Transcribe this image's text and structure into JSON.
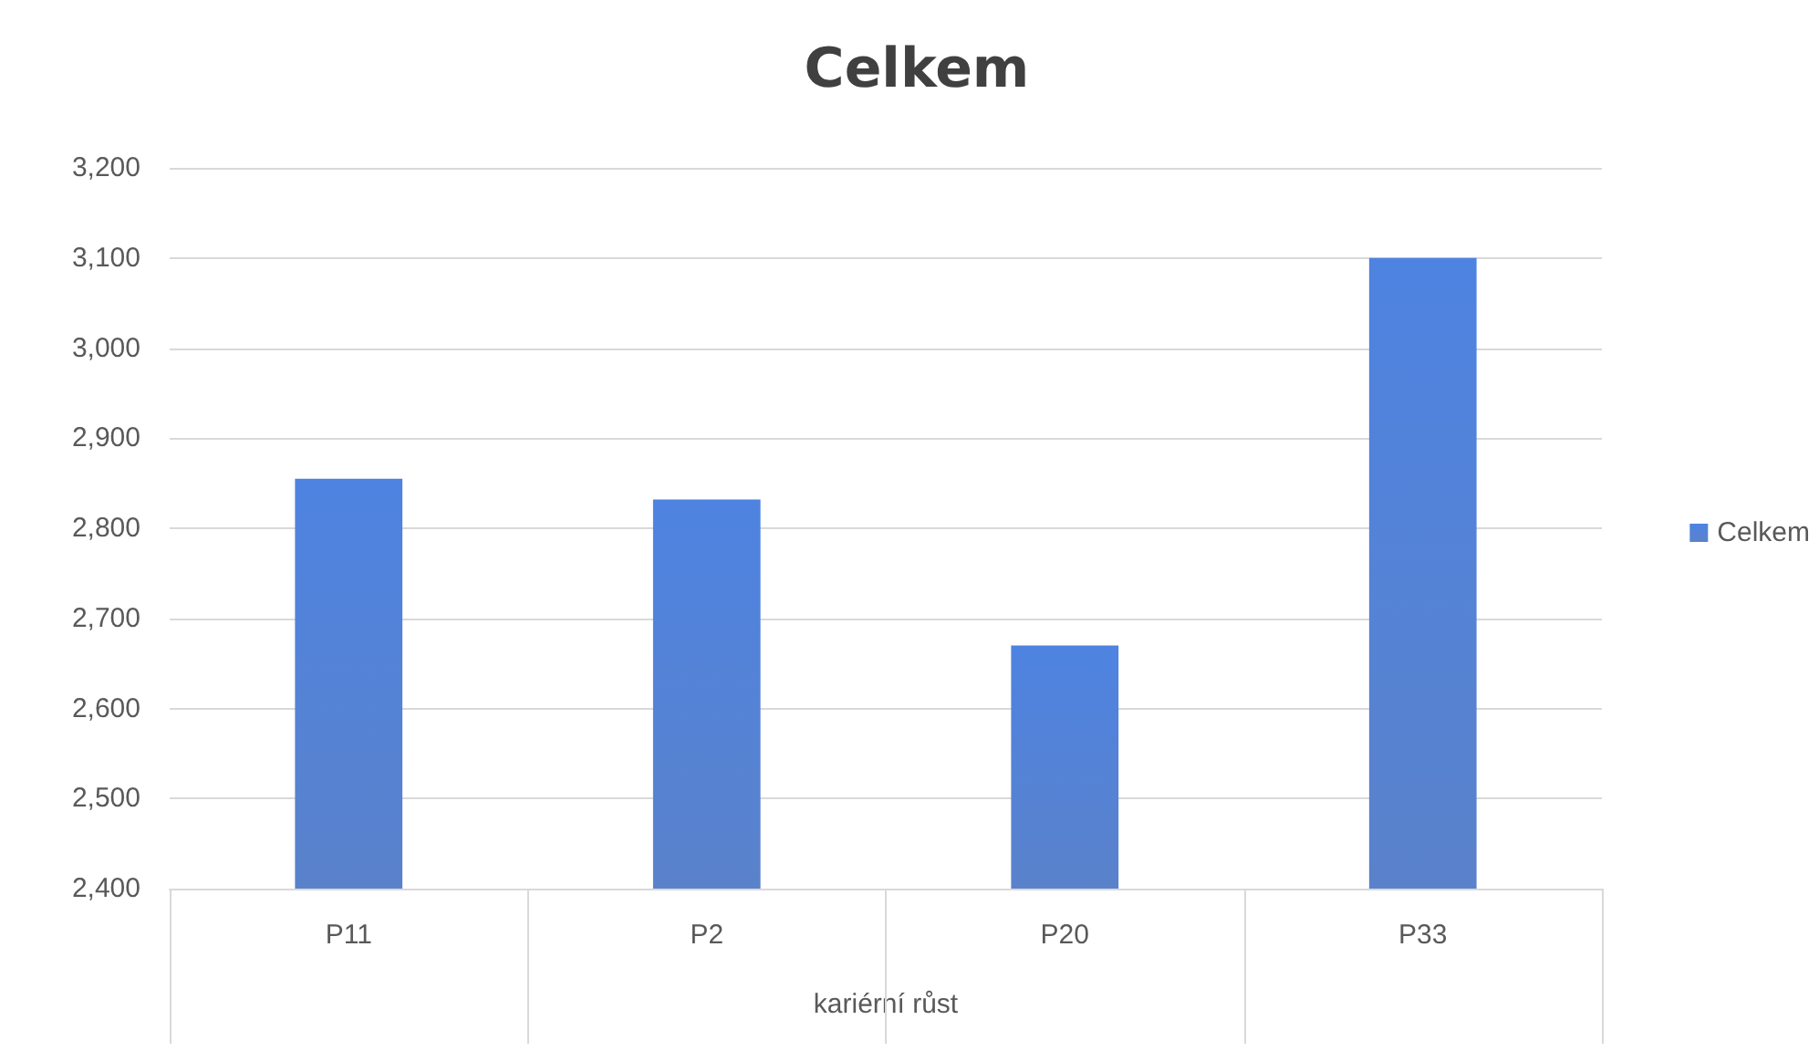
{
  "chart_data": {
    "type": "bar",
    "title": "Celkem",
    "xlabel": "kariérní růst",
    "categories": [
      "P11",
      "P2",
      "P20",
      "P33"
    ],
    "series": [
      {
        "name": "Celkem",
        "color": "#4472c4",
        "values": [
          2855,
          2832,
          2670,
          3100
        ]
      }
    ],
    "ylim": [
      2400,
      3200
    ],
    "yticks": [
      {
        "value": 2400,
        "label": "2,400"
      },
      {
        "value": 2500,
        "label": "2,500"
      },
      {
        "value": 2600,
        "label": "2,600"
      },
      {
        "value": 2700,
        "label": "2,700"
      },
      {
        "value": 2800,
        "label": "2,800"
      },
      {
        "value": 2900,
        "label": "2,900"
      },
      {
        "value": 3000,
        "label": "3,000"
      },
      {
        "value": 3100,
        "label": "3,100"
      },
      {
        "value": 3200,
        "label": "3,200"
      }
    ],
    "grid": true,
    "legend": "right"
  }
}
